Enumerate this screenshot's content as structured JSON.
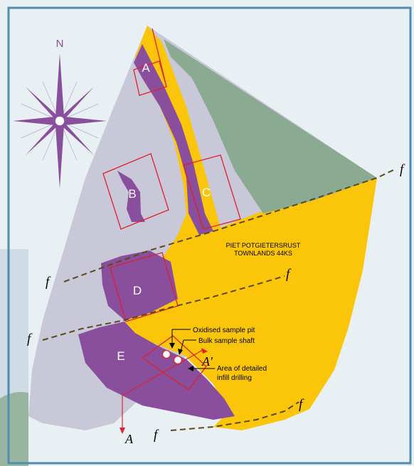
{
  "compass": {
    "north_label": "N"
  },
  "blocks": {
    "A": "A",
    "B": "B",
    "C": "C",
    "D": "D",
    "E": "E"
  },
  "region_label": {
    "line1": "PIET POTGIETERSRUST",
    "line2": "TOWNLANDS 44KS"
  },
  "fault_label": "f",
  "section": {
    "start": "A",
    "end": "A′"
  },
  "annotations": {
    "oxidised_pit": "Oxidised sample pit",
    "bulk_shaft": "Bulk sample shaft",
    "infill_line1": "Area of detailed",
    "infill_line2": "infill drilling"
  },
  "colors": {
    "background": "#e9f0f4",
    "frame": "#4e8cb0",
    "footwall": "#c9c8d8",
    "ore_body": "#8a4f9c",
    "hanging_wall": "#fbc50a",
    "green_unit": "#8aab91",
    "red_outline": "#e0202a",
    "fault": "#5a4a1c"
  }
}
